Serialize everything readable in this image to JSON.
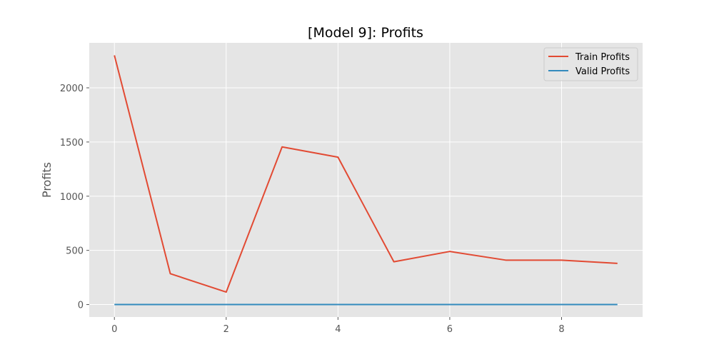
{
  "chart_data": {
    "type": "line",
    "title": "[Model 9]: Profits",
    "xlabel": "",
    "ylabel": "Profits",
    "xlim": [
      -0.45,
      9.45
    ],
    "ylim": [
      -115,
      2415
    ],
    "xticks": [
      0,
      2,
      4,
      6,
      8
    ],
    "yticks": [
      0,
      500,
      1000,
      1500,
      2000
    ],
    "grid": true,
    "legend": "top-right",
    "x": [
      0,
      1,
      2,
      3,
      4,
      5,
      6,
      7,
      8,
      9
    ],
    "series": [
      {
        "name": "Train Profits",
        "color": "#e24a33",
        "values": [
          2300,
          285,
          115,
          1455,
          1360,
          395,
          490,
          410,
          410,
          380
        ]
      },
      {
        "name": "Valid Profits",
        "color": "#348abd",
        "values": [
          0,
          0,
          0,
          0,
          0,
          0,
          0,
          0,
          0,
          0
        ]
      }
    ],
    "style": {
      "plot_background": "#e5e5e5",
      "grid_color": "#ffffff",
      "tick_color": "#555555"
    }
  }
}
